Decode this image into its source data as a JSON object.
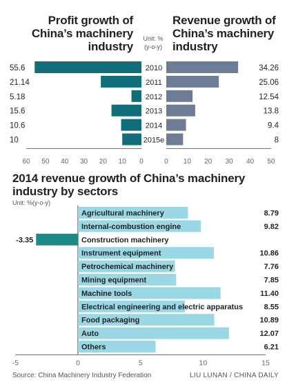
{
  "profit_panel": {
    "title_lines": [
      "Profit growth of",
      "China’s machinery",
      "industry"
    ]
  },
  "revenue_panel": {
    "title_lines": [
      "Revenue growth of",
      "China’s machinery",
      "industry"
    ]
  },
  "top_unit_lines": [
    "Unit: %",
    "(y-o-y)"
  ],
  "sector_panel": {
    "title_lines": [
      "2014 revenue growth of China’s machinery",
      "industry by sectors"
    ],
    "unit": "Unit: %(y-o-y)"
  },
  "colors": {
    "profit_bar": "#0f6e79",
    "revenue_bar": "#6e7d96",
    "sector_bar": "#9ad8e6",
    "sector_negative_bar": "#1e8a88",
    "text": "#231f20",
    "axis": "#666666"
  },
  "chart_data": [
    {
      "type": "bar",
      "orientation": "horizontal",
      "direction": "leftward",
      "title": "Profit growth of China’s machinery industry",
      "categories": [
        "2010",
        "2011",
        "2012",
        "2013",
        "2014",
        "2015e"
      ],
      "values": [
        55.6,
        21.14,
        5.18,
        15.6,
        10.6,
        10
      ],
      "value_labels": [
        "55.6",
        "21.14",
        "5.18",
        "15.6",
        "10.6",
        "10"
      ],
      "xlim": [
        0,
        60
      ],
      "ticks": [
        60,
        50,
        40,
        30,
        20,
        10,
        0
      ],
      "grid": false
    },
    {
      "type": "bar",
      "orientation": "horizontal",
      "direction": "rightward",
      "title": "Revenue growth of China’s machinery industry",
      "categories": [
        "2010",
        "2011",
        "2012",
        "2013",
        "2014",
        "2015e"
      ],
      "values": [
        34.26,
        25.06,
        12.54,
        13.8,
        9.4,
        8
      ],
      "value_labels": [
        "34.26",
        "25.06",
        "12.54",
        "13.8",
        "9.4",
        "8"
      ],
      "xlim": [
        0,
        50
      ],
      "ticks": [
        0,
        10,
        20,
        30,
        40,
        50
      ],
      "grid": false
    },
    {
      "type": "bar",
      "orientation": "horizontal",
      "title": "2014 revenue growth of China’s machinery industry by sectors",
      "categories": [
        "Agricultural machinery",
        "Internal-combustion engine",
        "Construction machinery",
        "Instrument equipment",
        "Petrochemical machinery",
        "Mining equipment",
        "Machine tools",
        "Electrical engineering and electric apparatus",
        "Food packaging",
        "Auto",
        "Others"
      ],
      "values": [
        8.79,
        9.82,
        -3.35,
        10.86,
        7.76,
        7.85,
        11.4,
        8.55,
        10.89,
        12.07,
        6.21
      ],
      "value_labels": [
        "8.79",
        "9.82",
        "-3.35",
        "10.86",
        "7.76",
        "7.85",
        "11.40",
        "8.55",
        "10.89",
        "12.07",
        "6.21"
      ],
      "xlim": [
        -5,
        15
      ],
      "ticks": [
        -5,
        0,
        5,
        10,
        15
      ],
      "grid": false
    }
  ],
  "footer": {
    "source": "Source: China Machinery Industry Federation",
    "credit": "LIU LUNAN / CHINA DAILY"
  }
}
